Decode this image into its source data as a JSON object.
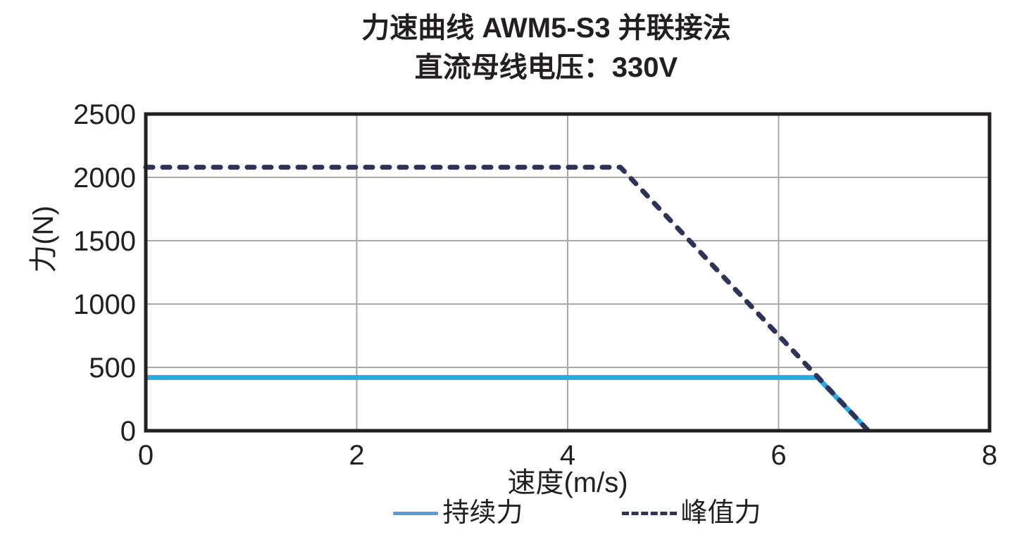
{
  "title": {
    "line1": "力速曲线 AWM5-S3 并联接法",
    "line2": "直流母线电压：330V"
  },
  "chart_data": {
    "type": "line",
    "title": "力速曲线 AWM5-S3 并联接法",
    "subtitle": "直流母线电压：330V",
    "xlabel": "速度(m/s)",
    "ylabel": "力(N)",
    "xlim": [
      0,
      8
    ],
    "ylim": [
      0,
      2500
    ],
    "x_ticks": [
      0,
      2,
      4,
      6,
      8
    ],
    "y_ticks": [
      0,
      500,
      1000,
      1500,
      2000,
      2500
    ],
    "grid": true,
    "legend_position": "bottom",
    "series": [
      {
        "name": "持续力",
        "style": "solid",
        "color": "#29ABE2",
        "points": [
          [
            0,
            420
          ],
          [
            6.37,
            420
          ],
          [
            6.85,
            0
          ]
        ]
      },
      {
        "name": "峰值力",
        "style": "dashed",
        "color": "#2D3359",
        "points": [
          [
            0,
            2080
          ],
          [
            4.5,
            2080
          ],
          [
            6.85,
            0
          ]
        ]
      }
    ]
  },
  "legend": {
    "items": [
      {
        "label": "持续力",
        "style": "solid",
        "color": "#5B9BD5"
      },
      {
        "label": "峰值力",
        "style": "dashed",
        "color": "#2D3359"
      }
    ]
  },
  "colors": {
    "background": "#FFFFFF",
    "axis_box": "#231F20",
    "grid": "#A9A9A9",
    "text": "#231F20"
  }
}
